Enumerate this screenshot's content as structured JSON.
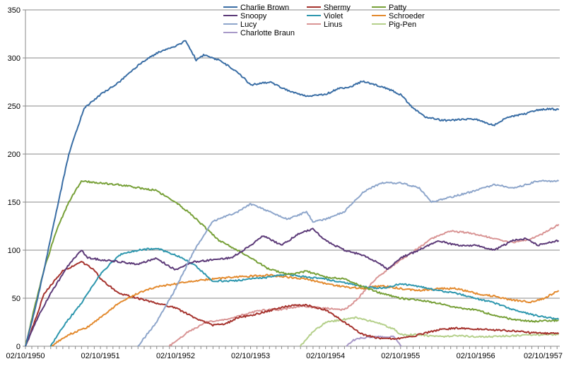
{
  "chart_data": {
    "type": "line",
    "title": "",
    "xlabel": "",
    "ylabel": "",
    "ylim": [
      0,
      350
    ],
    "yticks": [
      0,
      50,
      100,
      150,
      200,
      250,
      300,
      350
    ],
    "x_tick_labels": [
      "02/10/1950",
      "02/10/1951",
      "02/10/1952",
      "02/10/1953",
      "02/10/1954",
      "02/10/1955",
      "02/10/1956",
      "02/10/1957"
    ],
    "xlim": [
      "1950-10-02",
      "1957-11-15"
    ],
    "grid": "horizontal",
    "legend_position": "top-center",
    "series": [
      {
        "name": "Charlie Brown",
        "color": "#3A6EA5",
        "points": [
          [
            "1950-10-02",
            0
          ],
          [
            "1950-11-20",
            40
          ],
          [
            "1951-01-01",
            80
          ],
          [
            "1951-03-01",
            140
          ],
          [
            "1951-05-01",
            200
          ],
          [
            "1951-07-15",
            248
          ],
          [
            "1951-10-02",
            262
          ],
          [
            "1952-01-01",
            275
          ],
          [
            "1952-04-01",
            292
          ],
          [
            "1952-07-01",
            305
          ],
          [
            "1952-10-02",
            312
          ],
          [
            "1952-11-20",
            318
          ],
          [
            "1953-01-10",
            298
          ],
          [
            "1953-02-15",
            303
          ],
          [
            "1953-05-01",
            298
          ],
          [
            "1953-08-01",
            285
          ],
          [
            "1953-10-02",
            272
          ],
          [
            "1954-01-01",
            275
          ],
          [
            "1954-04-01",
            266
          ],
          [
            "1954-07-01",
            260
          ],
          [
            "1954-10-02",
            262
          ],
          [
            "1954-12-01",
            268
          ],
          [
            "1955-02-01",
            270
          ],
          [
            "1955-04-01",
            276
          ],
          [
            "1955-06-01",
            272
          ],
          [
            "1955-08-01",
            268
          ],
          [
            "1955-10-02",
            262
          ],
          [
            "1955-12-01",
            248
          ],
          [
            "1956-02-01",
            238
          ],
          [
            "1956-05-01",
            235
          ],
          [
            "1956-08-01",
            236
          ],
          [
            "1956-10-02",
            236
          ],
          [
            "1957-01-01",
            230
          ],
          [
            "1957-03-01",
            238
          ],
          [
            "1957-06-01",
            242
          ],
          [
            "1957-08-01",
            246
          ],
          [
            "1957-10-02",
            247
          ],
          [
            "1957-11-10",
            246
          ]
        ]
      },
      {
        "name": "Snoopy",
        "color": "#5C3A78",
        "points": [
          [
            "1950-10-02",
            0
          ],
          [
            "1950-12-01",
            30
          ],
          [
            "1951-02-01",
            55
          ],
          [
            "1951-05-01",
            85
          ],
          [
            "1951-07-01",
            100
          ],
          [
            "1951-08-01",
            92
          ],
          [
            "1951-10-02",
            90
          ],
          [
            "1952-01-01",
            88
          ],
          [
            "1952-04-01",
            85
          ],
          [
            "1952-07-01",
            92
          ],
          [
            "1952-09-01",
            83
          ],
          [
            "1952-10-02",
            80
          ],
          [
            "1953-01-01",
            88
          ],
          [
            "1953-04-01",
            90
          ],
          [
            "1953-07-01",
            92
          ],
          [
            "1953-10-02",
            105
          ],
          [
            "1953-12-01",
            115
          ],
          [
            "1954-03-01",
            105
          ],
          [
            "1954-06-01",
            118
          ],
          [
            "1954-08-01",
            122
          ],
          [
            "1954-10-02",
            110
          ],
          [
            "1955-01-01",
            100
          ],
          [
            "1955-04-01",
            95
          ],
          [
            "1955-07-01",
            85
          ],
          [
            "1955-08-01",
            80
          ],
          [
            "1955-10-02",
            92
          ],
          [
            "1956-01-01",
            100
          ],
          [
            "1956-04-01",
            110
          ],
          [
            "1956-07-01",
            105
          ],
          [
            "1956-10-02",
            105
          ],
          [
            "1957-01-01",
            100
          ],
          [
            "1957-04-01",
            110
          ],
          [
            "1957-06-01",
            112
          ],
          [
            "1957-08-01",
            105
          ],
          [
            "1957-11-10",
            110
          ]
        ]
      },
      {
        "name": "Lucy",
        "color": "#8EA6CB",
        "points": [
          [
            "1952-04-01",
            0
          ],
          [
            "1952-07-01",
            25
          ],
          [
            "1952-10-02",
            60
          ],
          [
            "1953-01-01",
            100
          ],
          [
            "1953-04-01",
            130
          ],
          [
            "1953-06-01",
            135
          ],
          [
            "1953-08-01",
            140
          ],
          [
            "1953-10-02",
            148
          ],
          [
            "1954-01-01",
            140
          ],
          [
            "1954-04-01",
            132
          ],
          [
            "1954-07-01",
            140
          ],
          [
            "1954-08-01",
            130
          ],
          [
            "1954-10-02",
            132
          ],
          [
            "1955-01-01",
            140
          ],
          [
            "1955-04-01",
            160
          ],
          [
            "1955-07-01",
            170
          ],
          [
            "1955-10-02",
            170
          ],
          [
            "1956-01-01",
            165
          ],
          [
            "1956-03-01",
            150
          ],
          [
            "1956-06-01",
            155
          ],
          [
            "1956-10-02",
            162
          ],
          [
            "1957-01-01",
            168
          ],
          [
            "1957-04-01",
            165
          ],
          [
            "1957-06-01",
            168
          ],
          [
            "1957-08-01",
            172
          ],
          [
            "1957-11-10",
            172
          ]
        ]
      },
      {
        "name": "Charlotte Braun",
        "color": "#A899C8",
        "points": [
          [
            "1955-01-10",
            0
          ],
          [
            "1955-02-10",
            6
          ],
          [
            "1955-04-01",
            9
          ],
          [
            "1955-07-01",
            10
          ],
          [
            "1955-09-01",
            10
          ],
          [
            "1955-10-05",
            0
          ]
        ]
      },
      {
        "name": "Shermy",
        "color": "#A5322D",
        "points": [
          [
            "1950-10-02",
            0
          ],
          [
            "1950-11-15",
            25
          ],
          [
            "1951-01-01",
            55
          ],
          [
            "1951-04-01",
            78
          ],
          [
            "1951-06-01",
            85
          ],
          [
            "1951-07-01",
            88
          ],
          [
            "1951-09-01",
            80
          ],
          [
            "1951-10-02",
            70
          ],
          [
            "1952-01-01",
            55
          ],
          [
            "1952-04-01",
            50
          ],
          [
            "1952-07-01",
            45
          ],
          [
            "1952-10-02",
            40
          ],
          [
            "1953-01-01",
            30
          ],
          [
            "1953-04-01",
            22
          ],
          [
            "1953-06-01",
            23
          ],
          [
            "1953-08-01",
            30
          ],
          [
            "1953-10-02",
            32
          ],
          [
            "1954-01-01",
            37
          ],
          [
            "1954-04-01",
            42
          ],
          [
            "1954-07-01",
            43
          ],
          [
            "1954-10-02",
            38
          ],
          [
            "1955-01-01",
            25
          ],
          [
            "1955-04-01",
            12
          ],
          [
            "1955-07-01",
            8
          ],
          [
            "1955-10-02",
            8
          ],
          [
            "1956-01-01",
            12
          ],
          [
            "1956-04-01",
            17
          ],
          [
            "1956-07-01",
            19
          ],
          [
            "1956-10-02",
            18
          ],
          [
            "1957-01-01",
            17
          ],
          [
            "1957-04-01",
            16
          ],
          [
            "1957-07-01",
            14
          ],
          [
            "1957-11-10",
            13
          ]
        ]
      },
      {
        "name": "Violet",
        "color": "#2E97AE",
        "points": [
          [
            "1951-02-01",
            0
          ],
          [
            "1951-04-01",
            20
          ],
          [
            "1951-07-01",
            45
          ],
          [
            "1951-10-02",
            75
          ],
          [
            "1952-01-01",
            95
          ],
          [
            "1952-04-01",
            100
          ],
          [
            "1952-07-01",
            102
          ],
          [
            "1952-10-02",
            95
          ],
          [
            "1953-01-01",
            85
          ],
          [
            "1953-04-01",
            68
          ],
          [
            "1953-07-01",
            68
          ],
          [
            "1953-10-02",
            70
          ],
          [
            "1954-01-01",
            72
          ],
          [
            "1954-04-01",
            75
          ],
          [
            "1954-07-01",
            72
          ],
          [
            "1954-10-02",
            70
          ],
          [
            "1955-01-01",
            66
          ],
          [
            "1955-04-01",
            62
          ],
          [
            "1955-07-01",
            60
          ],
          [
            "1955-10-02",
            65
          ],
          [
            "1956-01-01",
            62
          ],
          [
            "1956-04-01",
            58
          ],
          [
            "1956-07-01",
            55
          ],
          [
            "1956-10-02",
            50
          ],
          [
            "1957-01-01",
            45
          ],
          [
            "1957-04-01",
            38
          ],
          [
            "1957-07-01",
            33
          ],
          [
            "1957-11-10",
            28
          ]
        ]
      },
      {
        "name": "Linus",
        "color": "#D99595",
        "points": [
          [
            "1952-09-01",
            0
          ],
          [
            "1952-12-01",
            15
          ],
          [
            "1953-03-01",
            25
          ],
          [
            "1953-06-01",
            28
          ],
          [
            "1953-09-01",
            33
          ],
          [
            "1953-12-01",
            38
          ],
          [
            "1954-03-01",
            38
          ],
          [
            "1954-06-01",
            42
          ],
          [
            "1954-09-01",
            40
          ],
          [
            "1955-01-01",
            38
          ],
          [
            "1955-03-01",
            48
          ],
          [
            "1955-06-01",
            70
          ],
          [
            "1955-09-01",
            85
          ],
          [
            "1955-12-01",
            98
          ],
          [
            "1956-03-01",
            112
          ],
          [
            "1956-06-01",
            120
          ],
          [
            "1956-09-01",
            118
          ],
          [
            "1957-01-01",
            112
          ],
          [
            "1957-04-01",
            108
          ],
          [
            "1957-07-01",
            112
          ],
          [
            "1957-09-01",
            118
          ],
          [
            "1957-11-10",
            127
          ]
        ]
      },
      {
        "name": "Patty",
        "color": "#77A038",
        "points": [
          [
            "1950-10-02",
            0
          ],
          [
            "1950-11-20",
            45
          ],
          [
            "1951-01-01",
            80
          ],
          [
            "1951-03-01",
            120
          ],
          [
            "1951-05-01",
            150
          ],
          [
            "1951-07-01",
            172
          ],
          [
            "1951-10-02",
            170
          ],
          [
            "1952-01-01",
            168
          ],
          [
            "1952-04-01",
            165
          ],
          [
            "1952-07-01",
            162
          ],
          [
            "1952-10-02",
            150
          ],
          [
            "1952-12-01",
            140
          ],
          [
            "1953-02-01",
            128
          ],
          [
            "1953-05-01",
            110
          ],
          [
            "1953-08-01",
            100
          ],
          [
            "1953-10-02",
            92
          ],
          [
            "1954-01-01",
            80
          ],
          [
            "1954-04-01",
            75
          ],
          [
            "1954-07-01",
            78
          ],
          [
            "1954-10-02",
            72
          ],
          [
            "1955-01-01",
            70
          ],
          [
            "1955-04-01",
            62
          ],
          [
            "1955-07-01",
            55
          ],
          [
            "1955-10-02",
            50
          ],
          [
            "1956-01-01",
            48
          ],
          [
            "1956-04-01",
            45
          ],
          [
            "1956-07-01",
            40
          ],
          [
            "1956-10-02",
            38
          ],
          [
            "1957-01-01",
            32
          ],
          [
            "1957-04-01",
            28
          ],
          [
            "1957-07-01",
            26
          ],
          [
            "1957-11-10",
            27
          ]
        ]
      },
      {
        "name": "Schroeder",
        "color": "#E38A2E",
        "points": [
          [
            "1951-02-01",
            0
          ],
          [
            "1951-05-01",
            12
          ],
          [
            "1951-08-01",
            20
          ],
          [
            "1951-10-02",
            30
          ],
          [
            "1952-01-01",
            45
          ],
          [
            "1952-04-01",
            55
          ],
          [
            "1952-07-01",
            62
          ],
          [
            "1952-10-02",
            65
          ],
          [
            "1953-01-01",
            68
          ],
          [
            "1953-04-01",
            70
          ],
          [
            "1953-07-01",
            72
          ],
          [
            "1953-10-02",
            73
          ],
          [
            "1954-01-01",
            74
          ],
          [
            "1954-04-01",
            72
          ],
          [
            "1954-07-01",
            70
          ],
          [
            "1954-10-02",
            65
          ],
          [
            "1955-01-01",
            62
          ],
          [
            "1955-04-01",
            60
          ],
          [
            "1955-07-01",
            63
          ],
          [
            "1955-10-02",
            60
          ],
          [
            "1956-01-01",
            58
          ],
          [
            "1956-04-01",
            60
          ],
          [
            "1956-07-01",
            60
          ],
          [
            "1956-10-02",
            55
          ],
          [
            "1957-01-01",
            52
          ],
          [
            "1957-04-01",
            48
          ],
          [
            "1957-07-01",
            46
          ],
          [
            "1957-09-01",
            50
          ],
          [
            "1957-11-10",
            58
          ]
        ]
      },
      {
        "name": "Pig-Pen",
        "color": "#B5D08B",
        "points": [
          [
            "1954-06-01",
            0
          ],
          [
            "1954-08-01",
            15
          ],
          [
            "1954-10-02",
            25
          ],
          [
            "1955-01-01",
            28
          ],
          [
            "1955-03-01",
            30
          ],
          [
            "1955-06-01",
            25
          ],
          [
            "1955-09-01",
            18
          ],
          [
            "1955-10-02",
            12
          ],
          [
            "1956-01-01",
            12
          ],
          [
            "1956-04-01",
            10
          ],
          [
            "1956-07-01",
            11
          ],
          [
            "1956-10-02",
            10
          ],
          [
            "1957-01-01",
            10
          ],
          [
            "1957-04-01",
            11
          ],
          [
            "1957-07-01",
            12
          ],
          [
            "1957-11-10",
            12
          ]
        ]
      }
    ]
  }
}
